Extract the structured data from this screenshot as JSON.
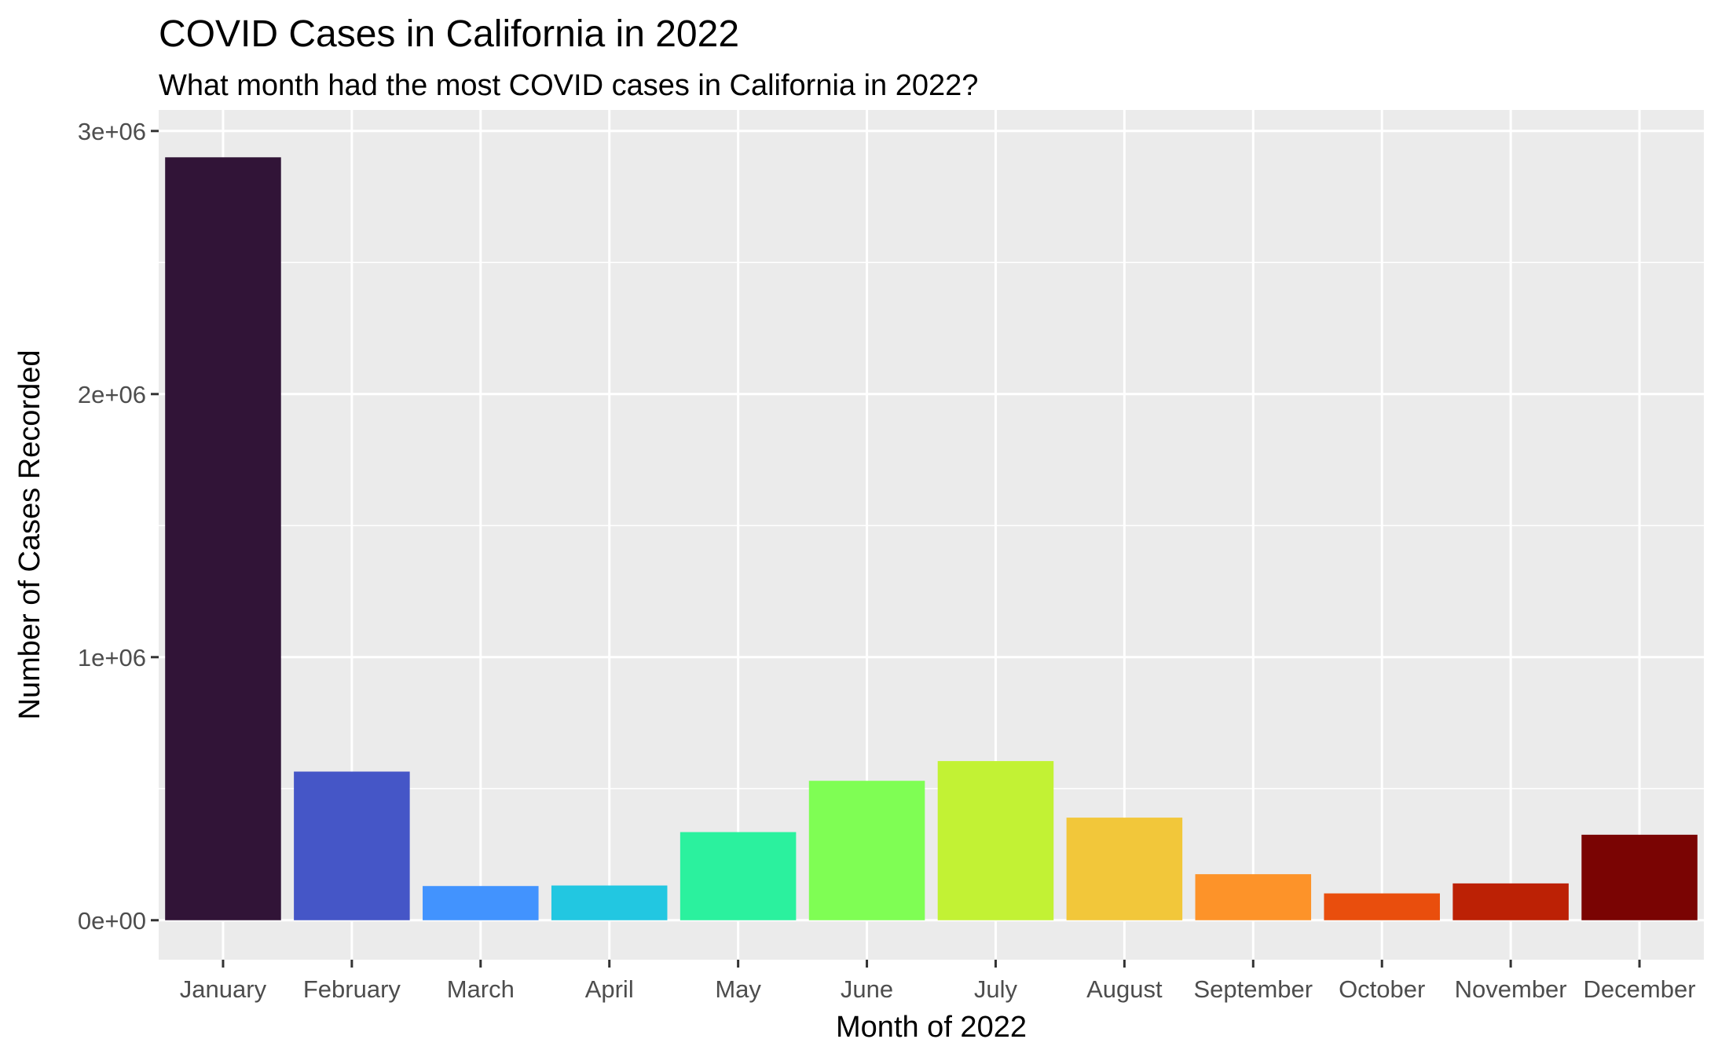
{
  "chart_data": {
    "type": "bar",
    "title": "COVID Cases in California in 2022",
    "subtitle": "What month had the most COVID cases in California in 2022?",
    "xlabel": "Month of 2022",
    "ylabel": "Number of Cases Recorded",
    "categories": [
      "January",
      "February",
      "March",
      "April",
      "May",
      "June",
      "July",
      "August",
      "September",
      "October",
      "November",
      "December"
    ],
    "values": [
      2900000,
      565000,
      130000,
      132000,
      335000,
      530000,
      605000,
      390000,
      175000,
      102000,
      140000,
      325000
    ],
    "colors": [
      "#311437",
      "#4556c7",
      "#4293fe",
      "#22c7e1",
      "#2bf19e",
      "#7ffe54",
      "#c2f234",
      "#f2c73a",
      "#fd9329",
      "#e94e0d",
      "#bc2105",
      "#7a0403"
    ],
    "ylim": [
      -150000,
      3080000
    ],
    "yticks": [
      0,
      1000000,
      2000000,
      3000000
    ],
    "ytick_labels": [
      "0e+00",
      "1e+06",
      "2e+06",
      "3e+06"
    ],
    "grid": true,
    "legend": "none",
    "panel_background": "#ebebeb",
    "grid_color": "#ffffff"
  }
}
